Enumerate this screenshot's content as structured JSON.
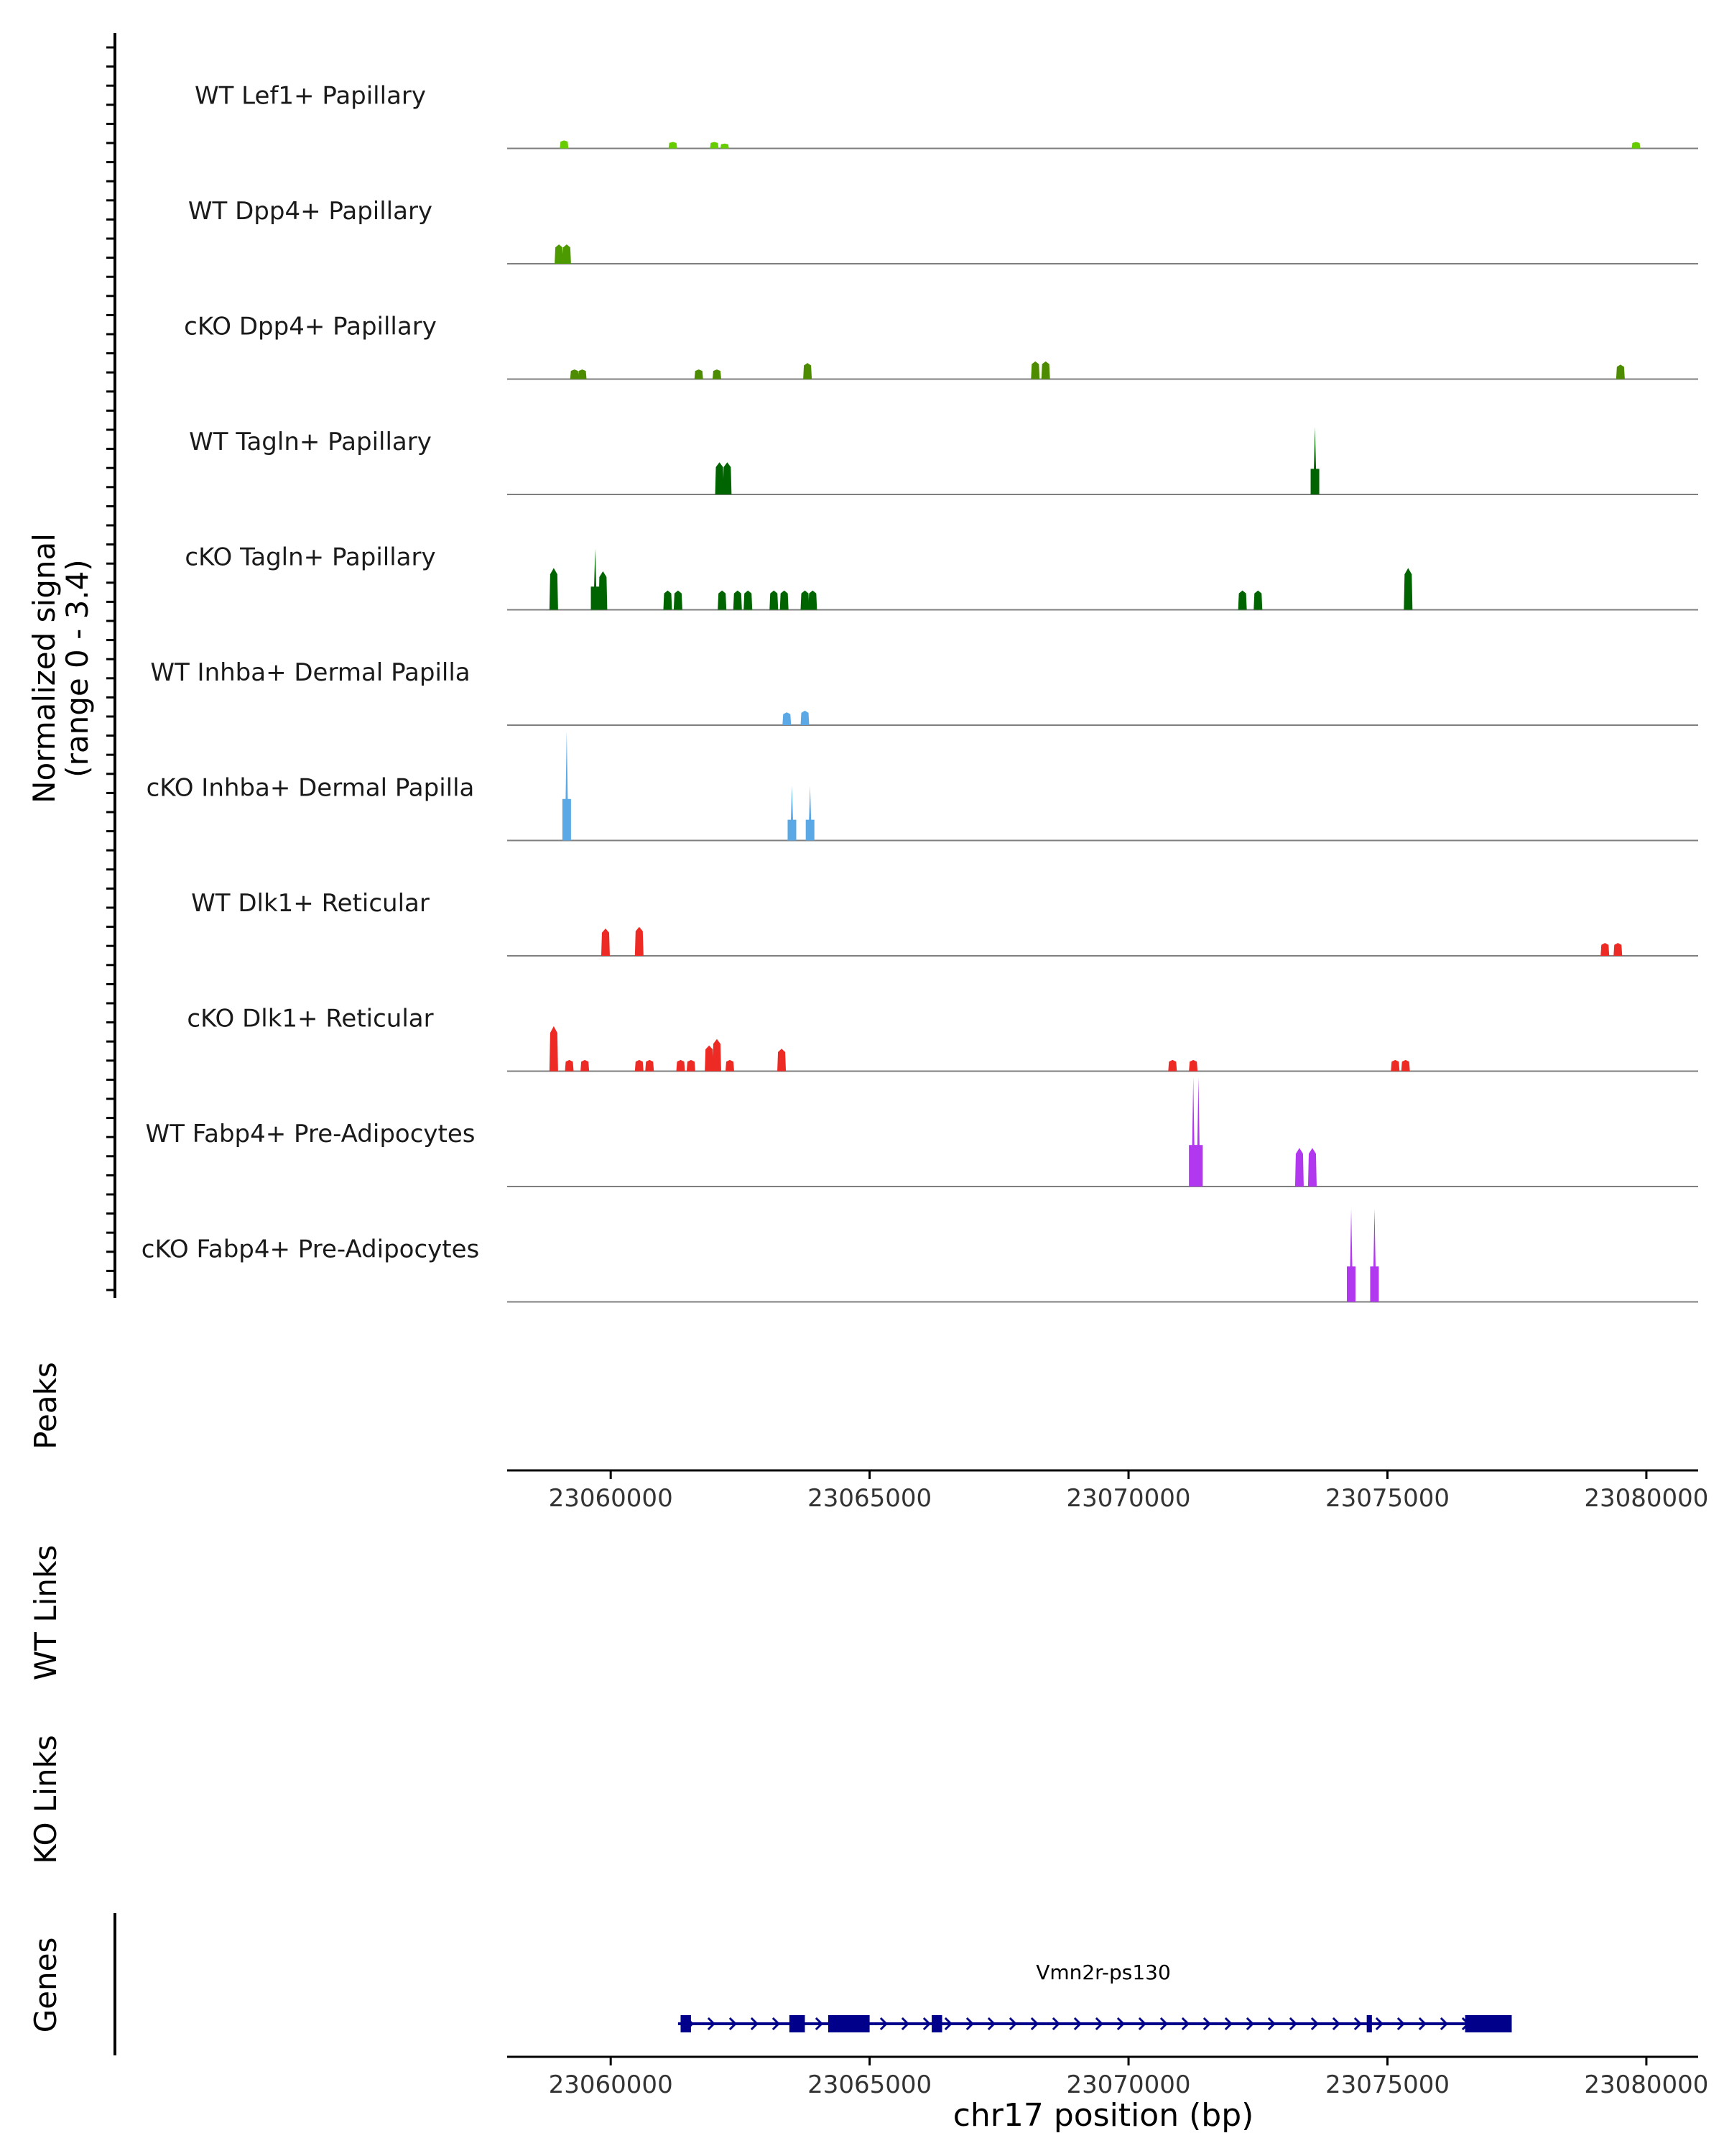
{
  "chart_data": {
    "type": "genome-coverage-tracks",
    "coverage": {
      "ylabel_line1": "Normalized signal",
      "ylabel_line2": "(range 0 - 3.4)",
      "ylim": [
        0,
        3.4
      ],
      "xlim": [
        23058000,
        23081000
      ],
      "tracks": [
        {
          "label": "WT Lef1+ Papillary",
          "color": "#66cc00",
          "peaks": [
            [
              23059100,
              0.25
            ],
            [
              23061200,
              0.2
            ],
            [
              23062000,
              0.2
            ],
            [
              23062200,
              0.15
            ],
            [
              23079800,
              0.2
            ]
          ]
        },
        {
          "label": "WT Dpp4+ Papillary",
          "color": "#4d9900",
          "peaks": [
            [
              23059000,
              0.6
            ],
            [
              23059150,
              0.6
            ]
          ]
        },
        {
          "label": "cKO Dpp4+ Papillary",
          "color": "#4d8c00",
          "peaks": [
            [
              23059300,
              0.3
            ],
            [
              23059450,
              0.3
            ],
            [
              23061700,
              0.3
            ],
            [
              23062050,
              0.3
            ],
            [
              23063800,
              0.5
            ],
            [
              23068200,
              0.55
            ],
            [
              23068400,
              0.55
            ],
            [
              23079500,
              0.45
            ]
          ]
        },
        {
          "label": "WT Tagln+ Papillary",
          "color": "#006400",
          "peaks": [
            [
              23062100,
              1.0
            ],
            [
              23062250,
              1.0
            ],
            [
              23073600,
              2.1
            ]
          ]
        },
        {
          "label": "cKO Tagln+ Papillary",
          "color": "#006400",
          "peaks": [
            [
              23058900,
              1.3
            ],
            [
              23059700,
              1.9
            ],
            [
              23059850,
              1.2
            ],
            [
              23061100,
              0.6
            ],
            [
              23061300,
              0.6
            ],
            [
              23062150,
              0.6
            ],
            [
              23062450,
              0.6
            ],
            [
              23062650,
              0.6
            ],
            [
              23063150,
              0.6
            ],
            [
              23063350,
              0.6
            ],
            [
              23063750,
              0.6
            ],
            [
              23063900,
              0.6
            ],
            [
              23072200,
              0.6
            ],
            [
              23072500,
              0.6
            ],
            [
              23075400,
              1.3
            ]
          ]
        },
        {
          "label": "WT Inhba+ Dermal Papilla",
          "color": "#5aa9e6",
          "peaks": [
            [
              23063400,
              0.4
            ],
            [
              23063750,
              0.45
            ]
          ]
        },
        {
          "label": "cKO Inhba+ Dermal Papilla",
          "color": "#5aa9e6",
          "peaks": [
            [
              23059150,
              3.4
            ],
            [
              23063500,
              1.7
            ],
            [
              23063850,
              1.7
            ]
          ]
        },
        {
          "label": "WT Dlk1+ Reticular",
          "color": "#ee2a24",
          "peaks": [
            [
              23059900,
              0.85
            ],
            [
              23060550,
              0.9
            ],
            [
              23079200,
              0.4
            ],
            [
              23079450,
              0.4
            ]
          ]
        },
        {
          "label": "cKO Dlk1+ Reticular",
          "color": "#ee2a24",
          "peaks": [
            [
              23058900,
              1.4
            ],
            [
              23059200,
              0.35
            ],
            [
              23059500,
              0.35
            ],
            [
              23060550,
              0.35
            ],
            [
              23060750,
              0.35
            ],
            [
              23061350,
              0.35
            ],
            [
              23061550,
              0.35
            ],
            [
              23061900,
              0.8
            ],
            [
              23062050,
              1.0
            ],
            [
              23062300,
              0.35
            ],
            [
              23063300,
              0.7
            ],
            [
              23070850,
              0.35
            ],
            [
              23071250,
              0.35
            ],
            [
              23075150,
              0.35
            ],
            [
              23075350,
              0.35
            ]
          ]
        },
        {
          "label": "WT Fabp4+ Pre-Adipocytes",
          "color": "#b138ee",
          "peaks": [
            [
              23071250,
              3.4
            ],
            [
              23071350,
              3.4
            ],
            [
              23073300,
              1.2
            ],
            [
              23073550,
              1.2
            ]
          ]
        },
        {
          "label": "cKO Fabp4+ Pre-Adipocytes",
          "color": "#b138ee",
          "peaks": [
            [
              23074300,
              2.9
            ],
            [
              23074750,
              2.9
            ]
          ]
        }
      ]
    },
    "peaks_track": {
      "label": "Peaks"
    },
    "wt_links": {
      "label": "WT Links"
    },
    "ko_links": {
      "label": "KO Links"
    },
    "genes": {
      "label": "Genes",
      "gene": {
        "name": "Vmn2r-ps130",
        "start": 23061300,
        "end": 23077400,
        "strand": "+",
        "exons": [
          [
            23061350,
            23061550
          ],
          [
            23063450,
            23063750
          ],
          [
            23064200,
            23065000
          ],
          [
            23066200,
            23066400
          ],
          [
            23074600,
            23074700
          ],
          [
            23076500,
            23077400
          ]
        ]
      }
    },
    "x_axis": {
      "ticks": [
        23060000,
        23065000,
        23070000,
        23075000,
        23080000
      ],
      "tick_labels": [
        "23060000",
        "23065000",
        "23070000",
        "23075000",
        "23080000"
      ],
      "xlabel": "chr17 position (bp)"
    }
  }
}
